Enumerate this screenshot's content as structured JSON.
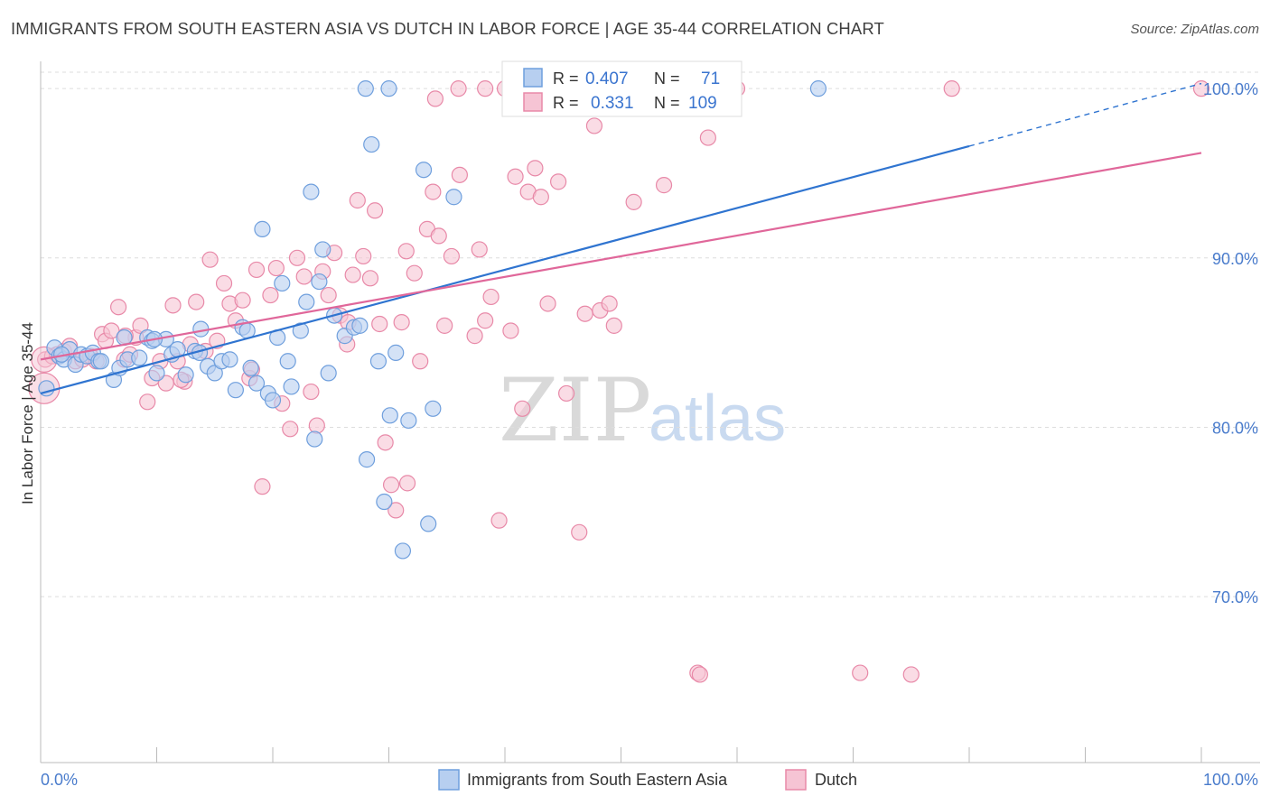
{
  "title": "IMMIGRANTS FROM SOUTH EASTERN ASIA VS DUTCH IN LABOR FORCE | AGE 35-44 CORRELATION CHART",
  "source": "Source: ZipAtlas.com",
  "watermark": {
    "zip": "ZIP",
    "atlas": "atlas"
  },
  "colors": {
    "blue": "#6f9fdd",
    "blue_fill": "#b7cff0",
    "blue_line": "#2f74d0",
    "pink": "#e889a8",
    "pink_fill": "#f6c4d4",
    "pink_line": "#e0679a",
    "tick_text": "#4a7ccc",
    "grid": "#dddddd"
  },
  "chart_data": {
    "type": "scatter",
    "title": "IMMIGRANTS FROM SOUTH EASTERN ASIA VS DUTCH IN LABOR FORCE | AGE 35-44 CORRELATION CHART",
    "xlabel": "",
    "ylabel": "In Labor Force | Age 35-44",
    "xlim": [
      0,
      100
    ],
    "ylim": [
      60.2,
      101.5
    ],
    "x_tick_labels": [
      "0.0%",
      "100.0%"
    ],
    "y_ticks": [
      70,
      80,
      90,
      100
    ],
    "y_tick_labels": [
      "70.0%",
      "80.0%",
      "90.0%",
      "100.0%"
    ],
    "grid": true,
    "legend_position": "bottom",
    "stats": [
      {
        "r_label": "R =",
        "r": "0.407",
        "n_label": "N =",
        "n": "71"
      },
      {
        "r_label": "R =",
        "r": "0.331",
        "n_label": "N =",
        "n": "109"
      }
    ],
    "series": [
      {
        "name": "Immigrants from South Eastern Asia",
        "trend": {
          "x0": 0,
          "y0": 82.0,
          "x1": 80,
          "y1": 96.6,
          "x_dash_end": 100,
          "y_dash_end": 100.3
        },
        "points": [
          [
            0.5,
            82.3
          ],
          [
            1.2,
            84.7
          ],
          [
            1.6,
            84.2
          ],
          [
            2.0,
            84.0
          ],
          [
            2.5,
            84.6
          ],
          [
            3.0,
            83.7
          ],
          [
            3.5,
            84.3
          ],
          [
            4.0,
            84.2
          ],
          [
            4.5,
            84.4
          ],
          [
            5.0,
            83.9
          ],
          [
            6.3,
            82.8
          ],
          [
            6.8,
            83.5
          ],
          [
            7.5,
            84.0
          ],
          [
            8.5,
            84.1
          ],
          [
            9.2,
            85.3
          ],
          [
            9.6,
            85.1
          ],
          [
            10.0,
            83.2
          ],
          [
            10.8,
            85.2
          ],
          [
            11.3,
            84.3
          ],
          [
            11.8,
            84.6
          ],
          [
            12.5,
            83.1
          ],
          [
            13.3,
            84.5
          ],
          [
            13.8,
            85.8
          ],
          [
            14.4,
            83.6
          ],
          [
            15.0,
            83.2
          ],
          [
            15.6,
            83.9
          ],
          [
            16.3,
            84.0
          ],
          [
            16.8,
            82.2
          ],
          [
            17.4,
            85.9
          ],
          [
            17.8,
            85.7
          ],
          [
            18.1,
            83.5
          ],
          [
            18.6,
            82.6
          ],
          [
            19.1,
            91.7
          ],
          [
            19.6,
            82.0
          ],
          [
            20.0,
            81.6
          ],
          [
            20.4,
            85.3
          ],
          [
            20.8,
            88.5
          ],
          [
            21.3,
            83.9
          ],
          [
            21.6,
            82.4
          ],
          [
            22.4,
            85.7
          ],
          [
            22.9,
            87.4
          ],
          [
            23.3,
            93.9
          ],
          [
            23.6,
            79.3
          ],
          [
            24.0,
            88.6
          ],
          [
            24.3,
            90.5
          ],
          [
            24.8,
            83.2
          ],
          [
            25.3,
            86.6
          ],
          [
            26.2,
            85.4
          ],
          [
            27.0,
            85.9
          ],
          [
            27.5,
            86.0
          ],
          [
            28.1,
            78.1
          ],
          [
            28.5,
            96.7
          ],
          [
            29.1,
            83.9
          ],
          [
            29.6,
            75.6
          ],
          [
            30.1,
            80.7
          ],
          [
            30.6,
            84.4
          ],
          [
            31.2,
            72.7
          ],
          [
            31.7,
            80.4
          ],
          [
            33.0,
            95.2
          ],
          [
            33.4,
            74.3
          ],
          [
            33.8,
            81.1
          ],
          [
            35.6,
            93.6
          ],
          [
            28.0,
            100.0
          ],
          [
            30.0,
            100.0
          ],
          [
            43.0,
            100.0
          ],
          [
            67.0,
            100.0
          ],
          [
            13.7,
            84.4
          ],
          [
            9.8,
            85.2
          ],
          [
            5.2,
            83.9
          ],
          [
            1.8,
            84.3
          ],
          [
            7.2,
            85.3
          ]
        ]
      },
      {
        "name": "Dutch",
        "trend": {
          "x0": 0,
          "y0": 84.0,
          "x1": 100,
          "y1": 96.2
        },
        "points": [
          [
            0.4,
            84.0
          ],
          [
            1.0,
            84.2
          ],
          [
            1.4,
            84.3
          ],
          [
            2.0,
            84.5
          ],
          [
            2.5,
            84.8
          ],
          [
            3.0,
            83.9
          ],
          [
            3.6,
            84.0
          ],
          [
            4.3,
            84.2
          ],
          [
            4.8,
            83.9
          ],
          [
            5.3,
            85.5
          ],
          [
            5.6,
            85.1
          ],
          [
            6.1,
            85.7
          ],
          [
            6.7,
            87.1
          ],
          [
            7.2,
            84.0
          ],
          [
            7.7,
            84.3
          ],
          [
            8.2,
            85.3
          ],
          [
            8.6,
            86.0
          ],
          [
            9.2,
            81.5
          ],
          [
            9.6,
            82.9
          ],
          [
            10.3,
            83.9
          ],
          [
            10.8,
            82.6
          ],
          [
            11.4,
            87.2
          ],
          [
            11.8,
            83.9
          ],
          [
            12.4,
            82.7
          ],
          [
            12.9,
            84.9
          ],
          [
            13.4,
            87.4
          ],
          [
            14.2,
            84.5
          ],
          [
            14.6,
            89.9
          ],
          [
            15.2,
            85.1
          ],
          [
            15.8,
            88.5
          ],
          [
            16.3,
            87.3
          ],
          [
            16.8,
            86.3
          ],
          [
            17.4,
            87.5
          ],
          [
            18.0,
            82.9
          ],
          [
            18.6,
            89.3
          ],
          [
            19.1,
            76.5
          ],
          [
            19.8,
            87.8
          ],
          [
            20.3,
            89.4
          ],
          [
            20.8,
            81.4
          ],
          [
            21.5,
            79.9
          ],
          [
            22.1,
            90.0
          ],
          [
            22.7,
            88.9
          ],
          [
            23.3,
            82.1
          ],
          [
            23.8,
            80.1
          ],
          [
            24.3,
            89.2
          ],
          [
            24.8,
            87.8
          ],
          [
            25.3,
            90.3
          ],
          [
            25.8,
            86.6
          ],
          [
            26.4,
            84.9
          ],
          [
            26.9,
            89.0
          ],
          [
            27.3,
            93.4
          ],
          [
            27.8,
            90.1
          ],
          [
            28.4,
            88.8
          ],
          [
            28.8,
            92.8
          ],
          [
            29.2,
            86.1
          ],
          [
            29.7,
            79.1
          ],
          [
            30.2,
            76.6
          ],
          [
            30.6,
            75.1
          ],
          [
            31.1,
            86.2
          ],
          [
            31.5,
            90.4
          ],
          [
            32.2,
            89.1
          ],
          [
            32.7,
            83.9
          ],
          [
            33.3,
            91.7
          ],
          [
            33.8,
            93.9
          ],
          [
            34.3,
            91.3
          ],
          [
            34.8,
            86.0
          ],
          [
            35.4,
            90.1
          ],
          [
            36.1,
            94.9
          ],
          [
            37.4,
            85.4
          ],
          [
            37.8,
            90.5
          ],
          [
            38.3,
            86.3
          ],
          [
            38.8,
            87.7
          ],
          [
            39.5,
            74.5
          ],
          [
            40.5,
            85.7
          ],
          [
            40.9,
            94.8
          ],
          [
            41.5,
            81.1
          ],
          [
            42.0,
            93.9
          ],
          [
            42.6,
            95.3
          ],
          [
            43.1,
            93.6
          ],
          [
            43.7,
            87.3
          ],
          [
            44.6,
            94.5
          ],
          [
            45.3,
            82.0
          ],
          [
            46.4,
            73.8
          ],
          [
            46.9,
            86.7
          ],
          [
            47.7,
            97.8
          ],
          [
            48.2,
            86.9
          ],
          [
            49.0,
            87.3
          ],
          [
            49.4,
            86.0
          ],
          [
            51.1,
            93.3
          ],
          [
            53.7,
            94.3
          ],
          [
            57.5,
            97.1
          ],
          [
            56.6,
            65.5
          ],
          [
            56.8,
            65.4
          ],
          [
            70.6,
            65.5
          ],
          [
            75.0,
            65.4
          ],
          [
            78.5,
            100.0
          ],
          [
            34.0,
            99.4
          ],
          [
            36.0,
            100.0
          ],
          [
            40.0,
            100.0
          ],
          [
            46.0,
            100.0
          ],
          [
            54.0,
            100.0
          ],
          [
            60.0,
            100.0
          ],
          [
            100.0,
            100.0
          ],
          [
            38.3,
            100.0
          ],
          [
            31.6,
            76.7
          ],
          [
            26.5,
            86.2
          ],
          [
            12.1,
            82.8
          ],
          [
            7.3,
            85.4
          ],
          [
            18.2,
            83.4
          ]
        ]
      }
    ]
  },
  "legend": {
    "items": [
      {
        "label": "Immigrants from South Eastern Asia"
      },
      {
        "label": "Dutch"
      }
    ]
  }
}
